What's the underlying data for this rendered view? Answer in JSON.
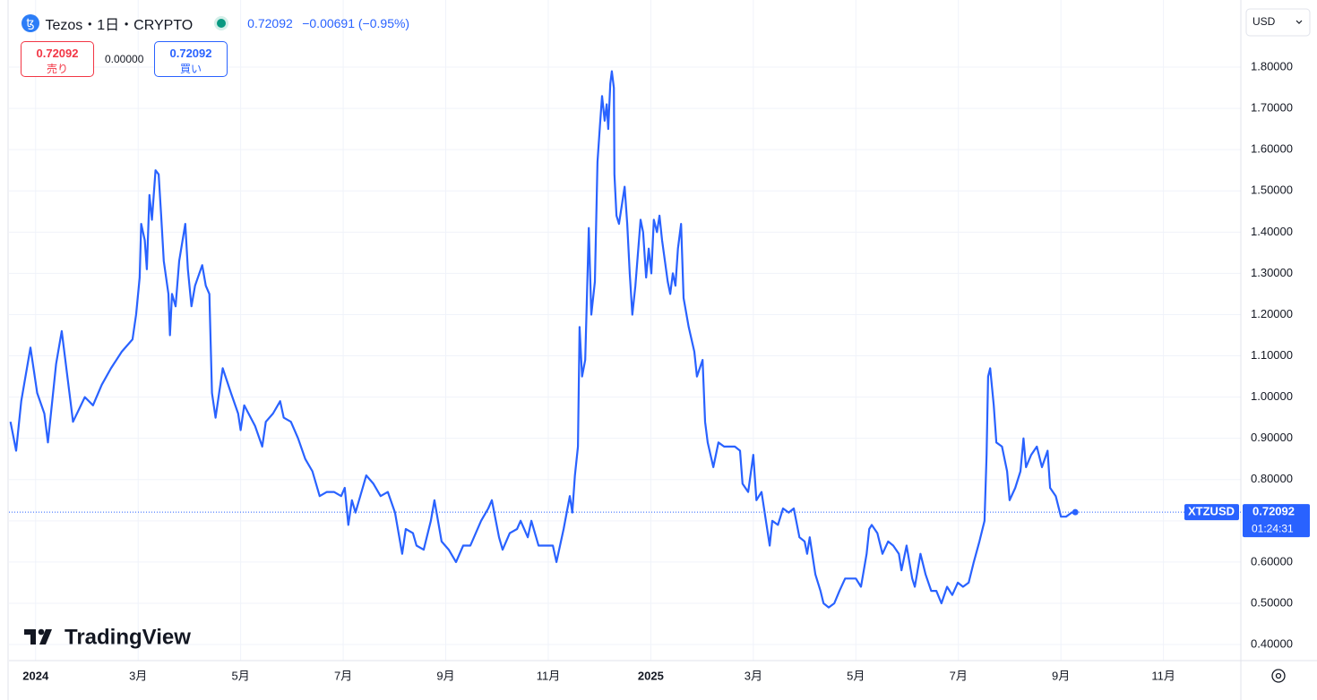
{
  "chart_data": {
    "type": "line",
    "title": "Tezos・1日・CRYPTO",
    "price": 0.72092,
    "change": "−0.00691 (−0.95%)",
    "sell": {
      "price": 0.72092,
      "label": "売り"
    },
    "spread": "0.00000",
    "buy": {
      "price": 0.72092,
      "label": "買い"
    },
    "currency": "USD",
    "countdown": "01:24:31",
    "brand": "TradingView",
    "x": [
      -0.49,
      -0.38,
      -0.28,
      -0.1,
      0.03,
      0.17,
      0.24,
      0.4,
      0.51,
      0.66,
      0.73,
      0.96,
      1.12,
      1.29,
      1.47,
      1.68,
      1.89,
      1.96,
      2.03,
      2.06,
      2.13,
      2.17,
      2.22,
      2.27,
      2.34,
      2.4,
      2.45,
      2.5,
      2.59,
      2.62,
      2.66,
      2.73,
      2.8,
      2.92,
      2.97,
      3.04,
      3.11,
      3.25,
      3.32,
      3.39,
      3.44,
      3.51,
      3.65,
      3.81,
      3.95,
      4.0,
      4.07,
      4.28,
      4.42,
      4.49,
      4.63,
      4.77,
      4.84,
      4.98,
      5.12,
      5.26,
      5.4,
      5.54,
      5.68,
      5.82,
      5.96,
      6.03,
      6.1,
      6.17,
      6.24,
      6.38,
      6.45,
      6.59,
      6.73,
      6.87,
      7.01,
      7.15,
      7.22,
      7.36,
      7.43,
      7.57,
      7.71,
      7.78,
      7.92,
      8.06,
      8.2,
      8.34,
      8.48,
      8.69,
      8.83,
      8.9,
      9.04,
      9.11,
      9.25,
      9.39,
      9.46,
      9.6,
      9.67,
      9.81,
      9.95,
      10.09,
      10.16,
      10.3,
      10.42,
      10.47,
      10.52,
      10.58,
      10.61,
      10.66,
      10.72,
      10.79,
      10.84,
      10.91,
      10.96,
      11.01,
      11.05,
      11.1,
      11.14,
      11.17,
      11.21,
      11.24,
      11.28,
      11.29,
      11.33,
      11.38,
      11.49,
      11.54,
      11.59,
      11.64,
      11.7,
      11.8,
      11.85,
      11.91,
      11.96,
      12.01,
      12.06,
      12.12,
      12.17,
      12.22,
      12.33,
      12.38,
      12.43,
      12.48,
      12.53,
      12.59,
      12.64,
      12.74,
      12.85,
      12.9,
      13.01,
      13.06,
      13.11,
      13.22,
      13.32,
      13.43,
      13.53,
      13.64,
      13.74,
      13.79,
      13.9,
      14.0,
      14.06,
      14.16,
      14.27,
      14.32,
      14.37,
      14.48,
      14.58,
      14.69,
      14.79,
      14.9,
      15.0,
      15.05,
      15.1,
      15.21,
      15.31,
      15.37,
      15.47,
      15.58,
      15.68,
      15.79,
      15.89,
      16.0,
      16.1,
      16.21,
      16.26,
      16.31,
      16.42,
      16.52,
      16.63,
      16.73,
      16.84,
      16.89,
      16.99,
      17.1,
      17.15,
      17.26,
      17.36,
      17.47,
      17.57,
      17.67,
      17.78,
      17.88,
      17.99,
      18.09,
      18.2,
      18.3,
      18.41,
      18.51,
      18.55,
      18.58,
      18.62,
      18.69,
      18.74,
      18.85,
      18.95,
      19.0,
      19.11,
      19.21,
      19.27,
      19.32,
      19.42,
      19.53,
      19.63,
      19.74,
      19.79,
      19.9,
      20.0,
      20.1,
      20.21,
      20.28
    ],
    "series": [
      {
        "name": "XTZUSD",
        "color": "#2962ff",
        "values": [
          0.94,
          0.87,
          0.99,
          1.12,
          1.01,
          0.96,
          0.89,
          1.08,
          1.16,
          1.01,
          0.94,
          1.0,
          0.98,
          1.03,
          1.07,
          1.11,
          1.14,
          1.2,
          1.29,
          1.42,
          1.38,
          1.31,
          1.49,
          1.43,
          1.55,
          1.54,
          1.44,
          1.33,
          1.25,
          1.15,
          1.25,
          1.22,
          1.33,
          1.42,
          1.31,
          1.22,
          1.27,
          1.32,
          1.27,
          1.25,
          1.01,
          0.95,
          1.07,
          1.01,
          0.96,
          0.92,
          0.98,
          0.93,
          0.88,
          0.94,
          0.96,
          0.99,
          0.95,
          0.94,
          0.9,
          0.85,
          0.82,
          0.76,
          0.77,
          0.77,
          0.76,
          0.78,
          0.69,
          0.75,
          0.72,
          0.78,
          0.81,
          0.79,
          0.76,
          0.77,
          0.72,
          0.62,
          0.68,
          0.67,
          0.64,
          0.63,
          0.7,
          0.75,
          0.65,
          0.63,
          0.6,
          0.64,
          0.64,
          0.7,
          0.73,
          0.75,
          0.66,
          0.63,
          0.67,
          0.68,
          0.7,
          0.66,
          0.7,
          0.64,
          0.64,
          0.64,
          0.6,
          0.68,
          0.76,
          0.72,
          0.81,
          0.88,
          1.17,
          1.05,
          1.09,
          1.41,
          1.2,
          1.28,
          1.57,
          1.66,
          1.73,
          1.67,
          1.71,
          1.65,
          1.76,
          1.79,
          1.75,
          1.54,
          1.44,
          1.42,
          1.51,
          1.42,
          1.3,
          1.2,
          1.27,
          1.43,
          1.4,
          1.29,
          1.36,
          1.3,
          1.43,
          1.4,
          1.44,
          1.38,
          1.28,
          1.25,
          1.3,
          1.27,
          1.36,
          1.42,
          1.24,
          1.17,
          1.11,
          1.05,
          1.09,
          0.94,
          0.89,
          0.83,
          0.89,
          0.88,
          0.88,
          0.88,
          0.87,
          0.79,
          0.77,
          0.86,
          0.75,
          0.77,
          0.68,
          0.64,
          0.7,
          0.69,
          0.73,
          0.72,
          0.73,
          0.66,
          0.65,
          0.62,
          0.66,
          0.57,
          0.53,
          0.5,
          0.49,
          0.5,
          0.53,
          0.56,
          0.56,
          0.56,
          0.54,
          0.62,
          0.68,
          0.69,
          0.67,
          0.62,
          0.65,
          0.64,
          0.62,
          0.58,
          0.64,
          0.56,
          0.54,
          0.62,
          0.57,
          0.53,
          0.53,
          0.5,
          0.54,
          0.52,
          0.55,
          0.54,
          0.55,
          0.6,
          0.65,
          0.7,
          0.86,
          1.05,
          1.07,
          0.98,
          0.89,
          0.88,
          0.82,
          0.75,
          0.78,
          0.82,
          0.9,
          0.83,
          0.86,
          0.88,
          0.83,
          0.87,
          0.78,
          0.76,
          0.71,
          0.71,
          0.72,
          0.72092
        ]
      }
    ],
    "xlim": [
      -0.52,
      23.51
    ],
    "ylim": [
      0.361,
      1.952
    ],
    "xticks": [
      {
        "value": 0,
        "label": "2024"
      },
      {
        "value": 2,
        "label": "3月"
      },
      {
        "value": 4,
        "label": "5月"
      },
      {
        "value": 6,
        "label": "7月"
      },
      {
        "value": 8,
        "label": "9月"
      },
      {
        "value": 10,
        "label": "11月"
      },
      {
        "value": 12,
        "label": "2025"
      },
      {
        "value": 14,
        "label": "3月"
      },
      {
        "value": 16,
        "label": "5月"
      },
      {
        "value": 18,
        "label": "7月"
      },
      {
        "value": 20,
        "label": "9月"
      },
      {
        "value": 22,
        "label": "11月"
      }
    ],
    "yticks": [
      {
        "value": 0.4,
        "label": "0.40000"
      },
      {
        "value": 0.5,
        "label": "0.50000"
      },
      {
        "value": 0.6,
        "label": "0.60000"
      },
      {
        "value": 0.7,
        "label": "0.70000"
      },
      {
        "value": 0.8,
        "label": "0.80000"
      },
      {
        "value": 0.9,
        "label": "0.90000"
      },
      {
        "value": 1.0,
        "label": "1.00000"
      },
      {
        "value": 1.1,
        "label": "1.10000"
      },
      {
        "value": 1.2,
        "label": "1.20000"
      },
      {
        "value": 1.3,
        "label": "1.30000"
      },
      {
        "value": 1.4,
        "label": "1.40000"
      },
      {
        "value": 1.5,
        "label": "1.50000"
      },
      {
        "value": 1.6,
        "label": "1.60000"
      },
      {
        "value": 1.7,
        "label": "1.70000"
      },
      {
        "value": 1.8,
        "label": "1.80000"
      }
    ],
    "grid": true
  }
}
